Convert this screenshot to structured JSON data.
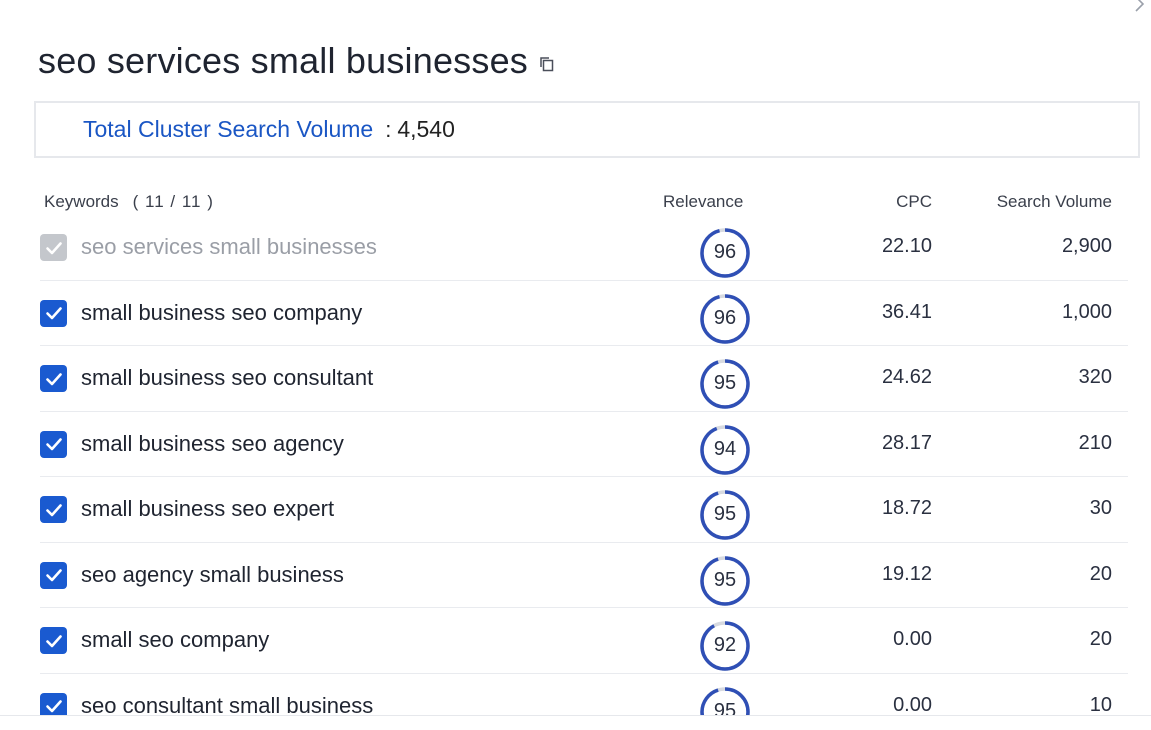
{
  "header": {
    "title": "seo services small businesses"
  },
  "summary": {
    "label": "Total Cluster Search Volume",
    "separator": ":",
    "value": "4,540"
  },
  "table": {
    "columns": {
      "keywords": "Keywords",
      "count": "( 11 / 11 )",
      "relevance": "Relevance",
      "cpc": "CPC",
      "volume": "Search Volume"
    },
    "rows": [
      {
        "keyword": "seo services small businesses",
        "relevance": "96",
        "cpc": "22.10",
        "volume": "2,900",
        "checked": true,
        "disabled": true
      },
      {
        "keyword": "small business seo company",
        "relevance": "96",
        "cpc": "36.41",
        "volume": "1,000",
        "checked": true,
        "disabled": false
      },
      {
        "keyword": "small business seo consultant",
        "relevance": "95",
        "cpc": "24.62",
        "volume": "320",
        "checked": true,
        "disabled": false
      },
      {
        "keyword": "small business seo agency",
        "relevance": "94",
        "cpc": "28.17",
        "volume": "210",
        "checked": true,
        "disabled": false
      },
      {
        "keyword": "small business seo expert",
        "relevance": "95",
        "cpc": "18.72",
        "volume": "30",
        "checked": true,
        "disabled": false
      },
      {
        "keyword": "seo agency small business",
        "relevance": "95",
        "cpc": "19.12",
        "volume": "20",
        "checked": true,
        "disabled": false
      },
      {
        "keyword": "small seo company",
        "relevance": "92",
        "cpc": "0.00",
        "volume": "20",
        "checked": true,
        "disabled": false
      },
      {
        "keyword": "seo consultant small business",
        "relevance": "95",
        "cpc": "0.00",
        "volume": "10",
        "checked": true,
        "disabled": false
      }
    ]
  },
  "colors": {
    "accent": "#1a5ad0",
    "link": "#1a56c4",
    "ring": "#2f4fb5",
    "ring_track": "#d7dae0",
    "disabled": "#c4c7cc"
  },
  "icons": {
    "close": "chevron-right-icon",
    "copy": "copy-icon",
    "check": "check-icon"
  }
}
